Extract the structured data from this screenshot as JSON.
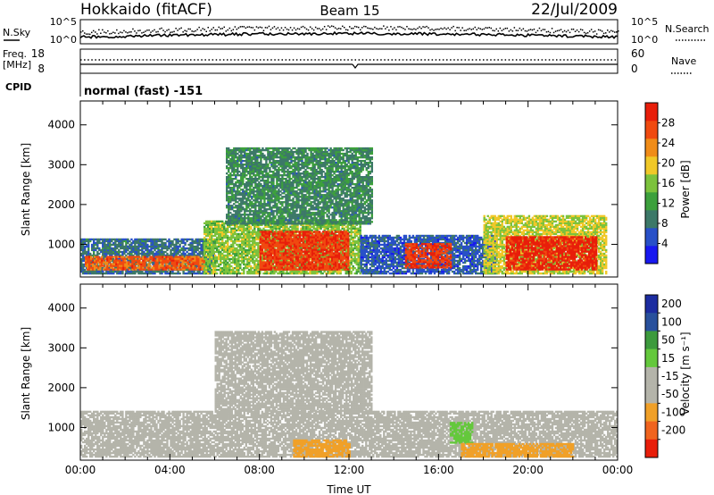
{
  "header": {
    "station": "Hokkaido (fitACF)",
    "beam": "Beam 15",
    "date": "22/Jul/2009"
  },
  "panels": {
    "nsky_label": "N.Sky",
    "nsearch_label": "N.Search",
    "nsky_ticks": [
      "10^5",
      "10^0"
    ],
    "nsearch_ticks": [
      "10^5",
      "10^0"
    ],
    "freq_label": "Freq.",
    "freq_unit": "[MHz]",
    "freq_ticks": [
      "18",
      "8"
    ],
    "nave_label": "Nave",
    "nave_ticks": [
      "60",
      "0"
    ],
    "cpid_label": "CPID",
    "cpid_value": "normal (fast) -151"
  },
  "colors": {
    "power": [
      "#1818f0",
      "#2850c8",
      "#3c7868",
      "#3ca03c",
      "#7cc23c",
      "#f0c828",
      "#f08c18",
      "#f04a10",
      "#e81e0a"
    ],
    "velocity": [
      "#e81e0a",
      "#f0641e",
      "#f0a028",
      "#b4b4aa",
      "#b4b4aa",
      "#64c83c",
      "#3c9a3c",
      "#28509c",
      "#1c2ca0"
    ]
  },
  "chart_data": [
    {
      "type": "heatmap",
      "name": "power",
      "ylabel": "Slant Range [km]",
      "xlabel": "Time UT",
      "x_ticks": [
        "00:00",
        "04:00",
        "08:00",
        "12:00",
        "16:00",
        "20:00",
        "00:00"
      ],
      "x_range_hours": [
        0,
        24
      ],
      "y_ticks": [
        1000,
        2000,
        3000,
        4000
      ],
      "ylim": [
        180,
        4600
      ],
      "colorbar_label": "Power [dB]",
      "colorbar_ticks": [
        4,
        8,
        12,
        16,
        20,
        24,
        28
      ],
      "colorbar_range": [
        0,
        32
      ],
      "regions": [
        {
          "t0": 0.0,
          "t1": 6.0,
          "r0": 250,
          "r1": 1150,
          "v": 8
        },
        {
          "t0": 0.2,
          "t1": 5.5,
          "r0": 350,
          "r1": 700,
          "v": 26
        },
        {
          "t0": 5.5,
          "t1": 12.5,
          "r0": 250,
          "r1": 1600,
          "v": 16
        },
        {
          "t0": 8.0,
          "t1": 12.0,
          "r0": 350,
          "r1": 1300,
          "v": 28
        },
        {
          "t0": 6.5,
          "t1": 13.0,
          "r0": 1500,
          "r1": 3400,
          "v": 10
        },
        {
          "t0": 12.5,
          "t1": 18.5,
          "r0": 250,
          "r1": 1200,
          "v": 6
        },
        {
          "t0": 14.5,
          "t1": 16.5,
          "r0": 400,
          "r1": 1000,
          "v": 28
        },
        {
          "t0": 18.0,
          "t1": 23.5,
          "r0": 250,
          "r1": 1700,
          "v": 18
        },
        {
          "t0": 19.0,
          "t1": 23.0,
          "r0": 350,
          "r1": 1200,
          "v": 30
        }
      ]
    },
    {
      "type": "heatmap",
      "name": "velocity",
      "ylabel": "Slant Range [km]",
      "xlabel": "Time UT",
      "x_ticks": [
        "00:00",
        "04:00",
        "08:00",
        "12:00",
        "16:00",
        "20:00",
        "00:00"
      ],
      "x_range_hours": [
        0,
        24
      ],
      "y_ticks": [
        1000,
        2000,
        3000,
        4000
      ],
      "ylim": [
        180,
        4600
      ],
      "colorbar_label": "Velocity [m s⁻¹]",
      "colorbar_ticks": [
        "200",
        "100",
        "50",
        "15",
        "-15",
        "-50",
        "-100",
        "-200"
      ],
      "regions": [
        {
          "t0": 0.0,
          "t1": 24.0,
          "r0": 250,
          "r1": 1400,
          "v": 0
        },
        {
          "t0": 6.0,
          "t1": 13.0,
          "r0": 1400,
          "r1": 3400,
          "v": 5
        },
        {
          "t0": 9.5,
          "t1": 12.0,
          "r0": 250,
          "r1": 700,
          "v": -60
        },
        {
          "t0": 16.5,
          "t1": 17.5,
          "r0": 600,
          "r1": 1100,
          "v": 60
        },
        {
          "t0": 17.0,
          "t1": 22.0,
          "r0": 250,
          "r1": 600,
          "v": -40
        }
      ]
    }
  ]
}
